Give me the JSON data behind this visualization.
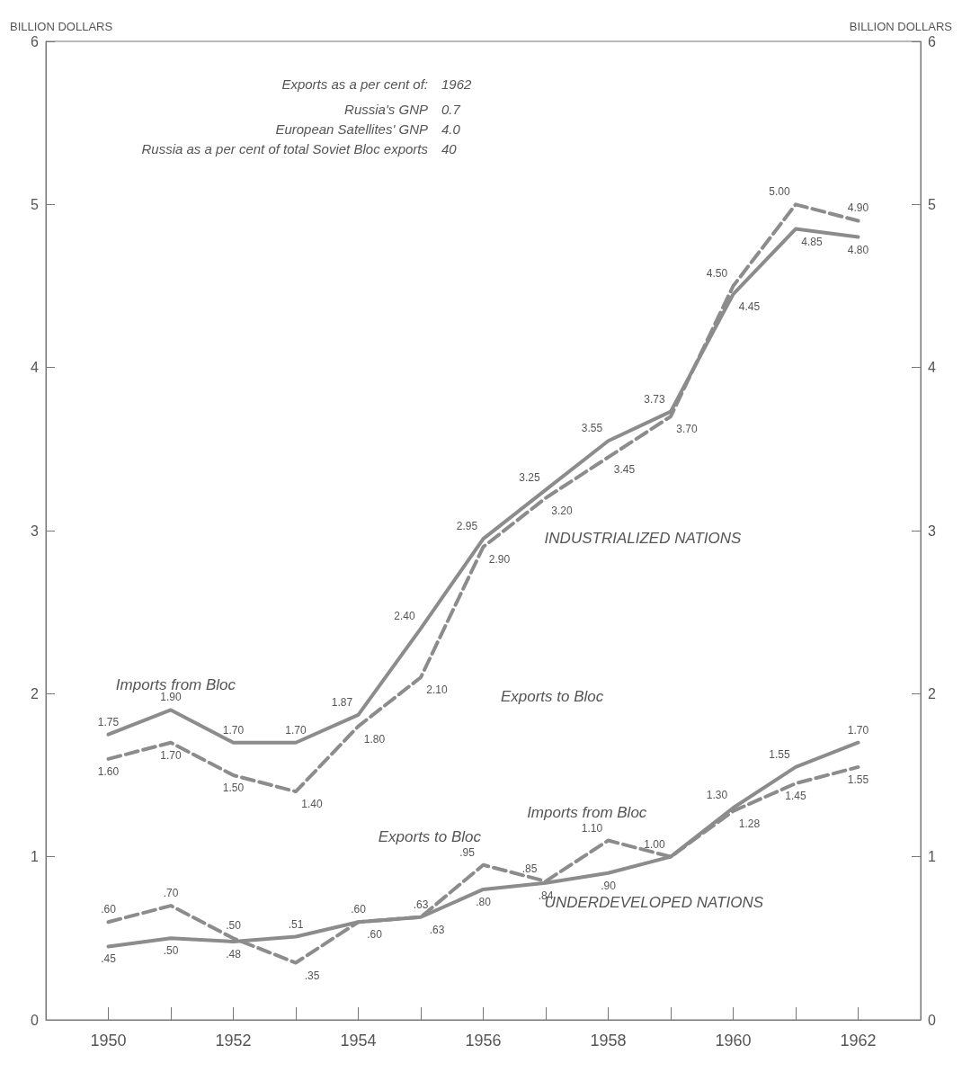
{
  "chart_data": {
    "type": "line",
    "ylabel": "BILLION DOLLARS",
    "y2label": "BILLION DOLLARS",
    "x": [
      1950,
      1951,
      1952,
      1953,
      1954,
      1955,
      1956,
      1957,
      1958,
      1959,
      1960,
      1961,
      1962
    ],
    "xlim": [
      1949,
      1963
    ],
    "xticks": [
      1950,
      {
        "value": 1951,
        "label": null
      },
      1952,
      {
        "value": 1953,
        "label": null
      },
      1954,
      {
        "value": 1955,
        "label": null
      },
      1956,
      {
        "value": 1957,
        "label": null
      },
      1958,
      {
        "value": 1959,
        "label": null
      },
      1960,
      {
        "value": 1961,
        "label": null
      },
      1962
    ],
    "ylim": [
      0,
      6
    ],
    "yticks": [
      0,
      1,
      2,
      3,
      4,
      5,
      6
    ],
    "y2lim": [
      0,
      6
    ],
    "y2ticks": [
      0,
      1,
      2,
      3,
      4,
      5,
      6
    ],
    "grid": false,
    "marker": "none",
    "series": [
      {
        "color": "#8c8c8c",
        "line_style": "solid",
        "values": [
          1.75,
          1.9,
          1.7,
          1.7,
          1.87,
          2.4,
          2.95,
          3.25,
          3.55,
          3.73,
          4.45,
          4.85,
          4.8
        ],
        "value_labels": [
          "1.75",
          "1.90",
          "1.70",
          "1.70",
          "1.87",
          "2.40",
          "2.95",
          "3.25",
          "3.55",
          "3.73",
          "4.45",
          "4.85",
          "4.80"
        ]
      },
      {
        "color": "#8c8c8c",
        "line_style": "dashed",
        "values": [
          1.6,
          1.7,
          1.5,
          1.4,
          1.8,
          2.1,
          2.9,
          3.2,
          3.45,
          3.7,
          4.5,
          5.0,
          4.9
        ],
        "value_labels": [
          "1.60",
          "1.70",
          "1.50",
          "1.40",
          "1.80",
          "2.10",
          "2.90",
          "3.20",
          "3.45",
          "3.70",
          "4.50",
          "5.00",
          "4.90"
        ]
      },
      {
        "color": "#8c8c8c",
        "line_style": "solid",
        "values": [
          0.45,
          0.5,
          0.48,
          0.51,
          0.6,
          0.63,
          0.8,
          0.84,
          0.9,
          1.0,
          1.3,
          1.55,
          1.7
        ],
        "value_labels": [
          ".45",
          ".50",
          ".48",
          ".51",
          ".60",
          ".63",
          ".80",
          ".84",
          ".90",
          "1.00",
          "1.30",
          "1.55",
          "1.70"
        ]
      },
      {
        "color": "#8c8c8c",
        "line_style": "dashed",
        "values": [
          0.6,
          0.7,
          0.5,
          0.35,
          0.6,
          0.63,
          0.95,
          0.85,
          1.1,
          1.0,
          1.28,
          1.45,
          1.55
        ],
        "value_labels": [
          ".60",
          ".70",
          ".50",
          ".35",
          ".60",
          ".63",
          ".95",
          ".85",
          "1.10",
          null,
          "1.28",
          "1.45",
          "1.55"
        ]
      }
    ],
    "annotations": [
      "Exports as a per cent of:",
      "1962",
      "Russia's GNP",
      "0.7",
      "European Satellites' GNP",
      "4.0",
      "Russia as a per cent of total Soviet Bloc exports",
      "40",
      "Imports from Bloc",
      "Exports to Bloc",
      "INDUSTRIALIZED NATIONS",
      "Imports from Bloc",
      "Exports to Bloc",
      "UNDERDEVELOPED NATIONS"
    ]
  }
}
